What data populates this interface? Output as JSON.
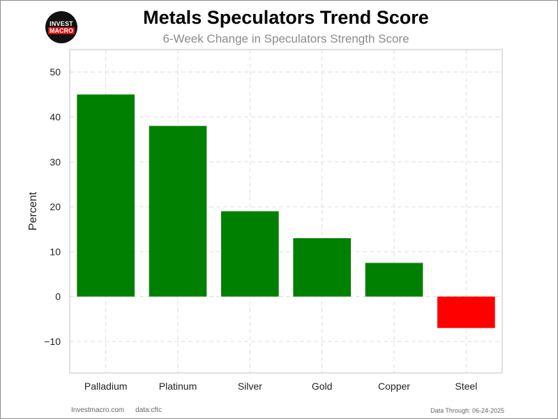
{
  "logo": {
    "top": "INVEST",
    "bottom": "MACRO"
  },
  "chart_data": {
    "type": "bar",
    "title": "Metals Speculators Trend Score",
    "subtitle": "6-Week Change in Speculators Strength Score",
    "xlabel": "",
    "ylabel": "Percent",
    "categories": [
      "Palladium",
      "Platinum",
      "Silver",
      "Gold",
      "Copper",
      "Steel"
    ],
    "values": [
      45,
      38,
      19,
      13,
      7.5,
      -7
    ],
    "bar_colors": [
      "#008000",
      "#008000",
      "#008000",
      "#008000",
      "#008000",
      "#ff0000"
    ],
    "ylim": [
      -17,
      55
    ],
    "yticks": [
      -10,
      0,
      10,
      20,
      30,
      40,
      50
    ],
    "ytick_labels": [
      "−10",
      "0",
      "10",
      "20",
      "30",
      "40",
      "50"
    ],
    "grid": true
  },
  "footer": {
    "site": "Investmacro.com",
    "source": "data:cftc",
    "data_through": "Data Through: 06-24-2025"
  }
}
